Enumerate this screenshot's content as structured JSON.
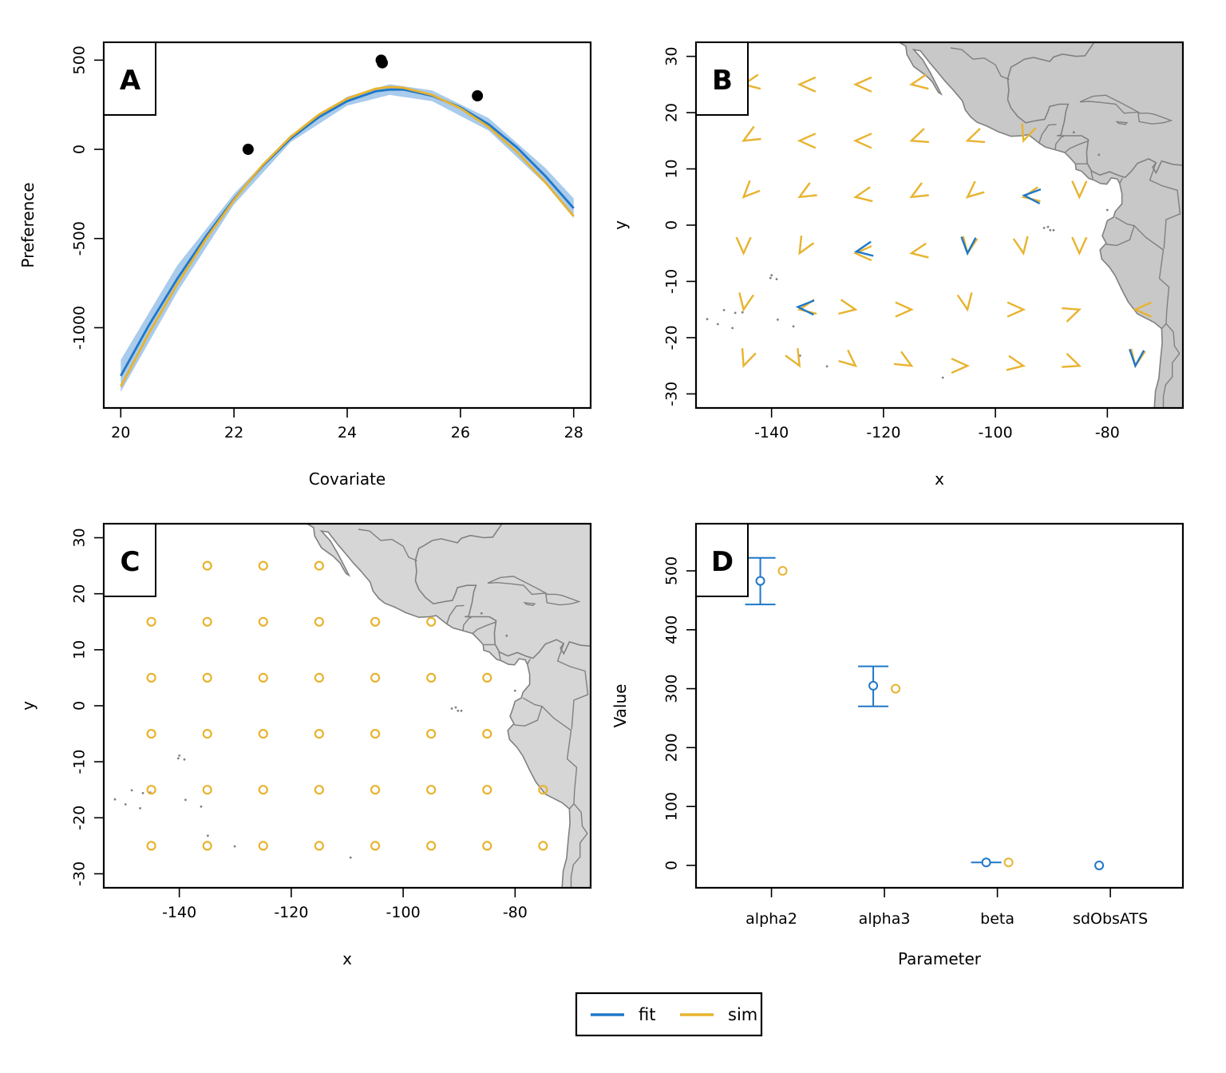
{
  "colors": {
    "fit": "#1f77c8",
    "sim": "#e8b32e",
    "ci_band": "#a9cbec",
    "land_fill": "#c8c8c8",
    "land_fill_c": "#d6d6d6",
    "land_stroke": "#808080",
    "marker": "#000000"
  },
  "legend": {
    "entries": [
      "fit",
      "sim"
    ],
    "placement": "bottom-center"
  },
  "chart_data": [
    {
      "panel": "A",
      "type": "line",
      "xlabel": "Covariate",
      "ylabel": "Preference",
      "xlim": [
        19.7,
        28.3
      ],
      "ylim": [
        -1450,
        600
      ],
      "xticks": [
        20,
        22,
        24,
        26,
        28
      ],
      "yticks": [
        -1000,
        -500,
        0,
        500
      ],
      "series": [
        {
          "name": "fit",
          "x": [
            20.0,
            20.5,
            21.0,
            21.5,
            22.0,
            22.25,
            22.5,
            23.0,
            23.5,
            24.0,
            24.5,
            24.75,
            25.0,
            25.5,
            26.0,
            26.5,
            27.0,
            27.5,
            28.0
          ],
          "y": [
            -1270,
            -985,
            -725,
            -490,
            -280,
            -185,
            -95,
            60,
            180,
            270,
            325,
            335,
            335,
            300,
            235,
            140,
            10,
            -150,
            -330
          ]
        },
        {
          "name": "sim",
          "x": [
            20.0,
            20.5,
            21.0,
            21.5,
            22.0,
            22.25,
            22.5,
            23.0,
            23.5,
            24.0,
            24.5,
            24.75,
            25.0,
            25.5,
            26.0,
            26.5,
            27.0,
            27.5,
            28.0
          ],
          "y": [
            -1330,
            -1030,
            -755,
            -505,
            -285,
            -185,
            -90,
            70,
            195,
            285,
            340,
            350,
            345,
            305,
            230,
            125,
            -15,
            -185,
            -375
          ]
        }
      ],
      "band": {
        "x": [
          20.0,
          21.0,
          22.0,
          23.0,
          24.0,
          24.75,
          25.5,
          26.5,
          27.5,
          28.0
        ],
        "lower": [
          -1360,
          -800,
          -310,
          40,
          245,
          305,
          270,
          105,
          -195,
          -385
        ],
        "upper": [
          -1180,
          -650,
          -250,
          80,
          295,
          365,
          330,
          175,
          -105,
          -275
        ]
      },
      "points": {
        "x": [
          22.25,
          24.6,
          24.62,
          26.3
        ],
        "y": [
          0,
          500,
          485,
          300
        ]
      }
    },
    {
      "panel": "B",
      "type": "vector-map",
      "xlabel": "x",
      "ylabel": "y",
      "xlim": [
        -153.5,
        -66.5
      ],
      "ylim": [
        -32.5,
        32.5
      ],
      "xticks": [
        -140,
        -120,
        -100,
        -80
      ],
      "yticks": [
        -30,
        -20,
        -10,
        0,
        10,
        20,
        30
      ],
      "grid_x": [
        -145,
        -135,
        -125,
        -115,
        -105,
        -95,
        -85,
        -75
      ],
      "grid_y": [
        -25,
        -15,
        -5,
        5,
        15,
        25
      ],
      "sim_angle_deg": [
        [
          -20,
          30,
          50,
          60,
          90,
          80,
          70,
          -10
        ],
        [
          -10,
          -80,
          80,
          90,
          10,
          90,
          110,
          -90
        ],
        [
          0,
          -30,
          -90,
          -80,
          -10,
          10,
          0,
          0
        ],
        [
          -45,
          -60,
          -80,
          -60,
          -50,
          -80,
          0,
          0
        ],
        [
          -60,
          -90,
          -90,
          -70,
          -70,
          -20,
          -10,
          -30
        ],
        [
          -80,
          -90,
          -90,
          -80,
          -90,
          -90,
          -90,
          -90
        ]
      ],
      "fit_offsets": [
        {
          "x": -135,
          "y": -15,
          "dx": -2,
          "dy": 3,
          "ddeg": -12
        },
        {
          "x": -125,
          "y": -5,
          "dx": 1,
          "dy": 2,
          "ddeg": 10
        },
        {
          "x": -105,
          "y": -5,
          "dx": 0,
          "dy": 0,
          "ddeg": 6
        },
        {
          "x": -95,
          "y": 5,
          "dx": 1,
          "dy": 2,
          "ddeg": -14
        },
        {
          "x": -75,
          "y": -25,
          "dx": 0,
          "dy": 0,
          "ddeg": 5
        }
      ]
    },
    {
      "panel": "C",
      "type": "scatter-map",
      "xlabel": "x",
      "ylabel": "y",
      "xlim": [
        -153.5,
        -66.5
      ],
      "ylim": [
        -32.5,
        32.5
      ],
      "xticks": [
        -140,
        -120,
        -100,
        -80
      ],
      "yticks": [
        -30,
        -20,
        -10,
        0,
        10,
        20,
        30
      ],
      "points": [
        [
          -135,
          25
        ],
        [
          -125,
          25
        ],
        [
          -115,
          25
        ],
        [
          -145,
          15
        ],
        [
          -135,
          15
        ],
        [
          -125,
          15
        ],
        [
          -115,
          15
        ],
        [
          -105,
          15
        ],
        [
          -95,
          15
        ],
        [
          -145,
          5
        ],
        [
          -135,
          5
        ],
        [
          -125,
          5
        ],
        [
          -115,
          5
        ],
        [
          -105,
          5
        ],
        [
          -95,
          5
        ],
        [
          -85,
          5
        ],
        [
          -145,
          -5
        ],
        [
          -135,
          -5
        ],
        [
          -125,
          -5
        ],
        [
          -115,
          -5
        ],
        [
          -105,
          -5
        ],
        [
          -95,
          -5
        ],
        [
          -85,
          -5
        ],
        [
          -145,
          -15
        ],
        [
          -135,
          -15
        ],
        [
          -125,
          -15
        ],
        [
          -115,
          -15
        ],
        [
          -105,
          -15
        ],
        [
          -95,
          -15
        ],
        [
          -85,
          -15
        ],
        [
          -75,
          -15
        ],
        [
          -145,
          -25
        ],
        [
          -135,
          -25
        ],
        [
          -125,
          -25
        ],
        [
          -115,
          -25
        ],
        [
          -105,
          -25
        ],
        [
          -95,
          -25
        ],
        [
          -85,
          -25
        ],
        [
          -75,
          -25
        ]
      ]
    },
    {
      "panel": "D",
      "type": "errorbar",
      "xlabel": "Parameter",
      "ylabel": "Value",
      "categories": [
        "alpha2",
        "alpha3",
        "beta",
        "sdObsATS"
      ],
      "ylim": [
        -38,
        580
      ],
      "yticks": [
        0,
        100,
        200,
        300,
        400,
        500
      ],
      "series": [
        {
          "name": "fit",
          "values": [
            483,
            305,
            5,
            0
          ],
          "lower": [
            443,
            270,
            4,
            null
          ],
          "upper": [
            522,
            338,
            6,
            null
          ]
        },
        {
          "name": "sim",
          "values": [
            500,
            300,
            5,
            null
          ]
        }
      ]
    }
  ]
}
